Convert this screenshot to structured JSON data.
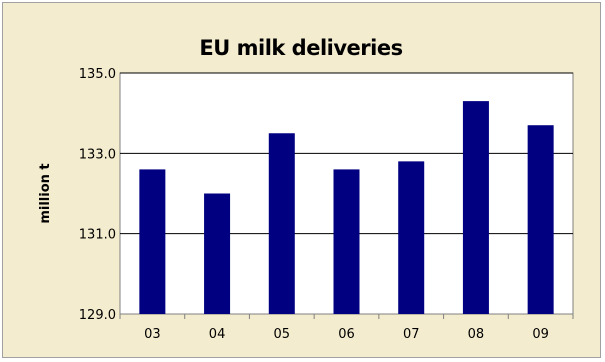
{
  "chart_data": {
    "type": "bar",
    "title": "EU milk deliveries",
    "xlabel": "",
    "ylabel": "million t",
    "ylabel_visible": "million t",
    "categories": [
      "03",
      "04",
      "05",
      "06",
      "07",
      "08",
      "09"
    ],
    "values": [
      132.6,
      132.0,
      133.5,
      132.6,
      132.8,
      134.3,
      133.7
    ],
    "ylim": [
      129.0,
      135.0
    ],
    "yticks": [
      "129.0",
      "131.0",
      "133.0",
      "135.0"
    ],
    "grid": true,
    "legend": "none",
    "colors": {
      "bar": "#000080",
      "plot_background": "#ffffff",
      "chart_background": "#f4ecce",
      "gridline": "#000000"
    }
  }
}
